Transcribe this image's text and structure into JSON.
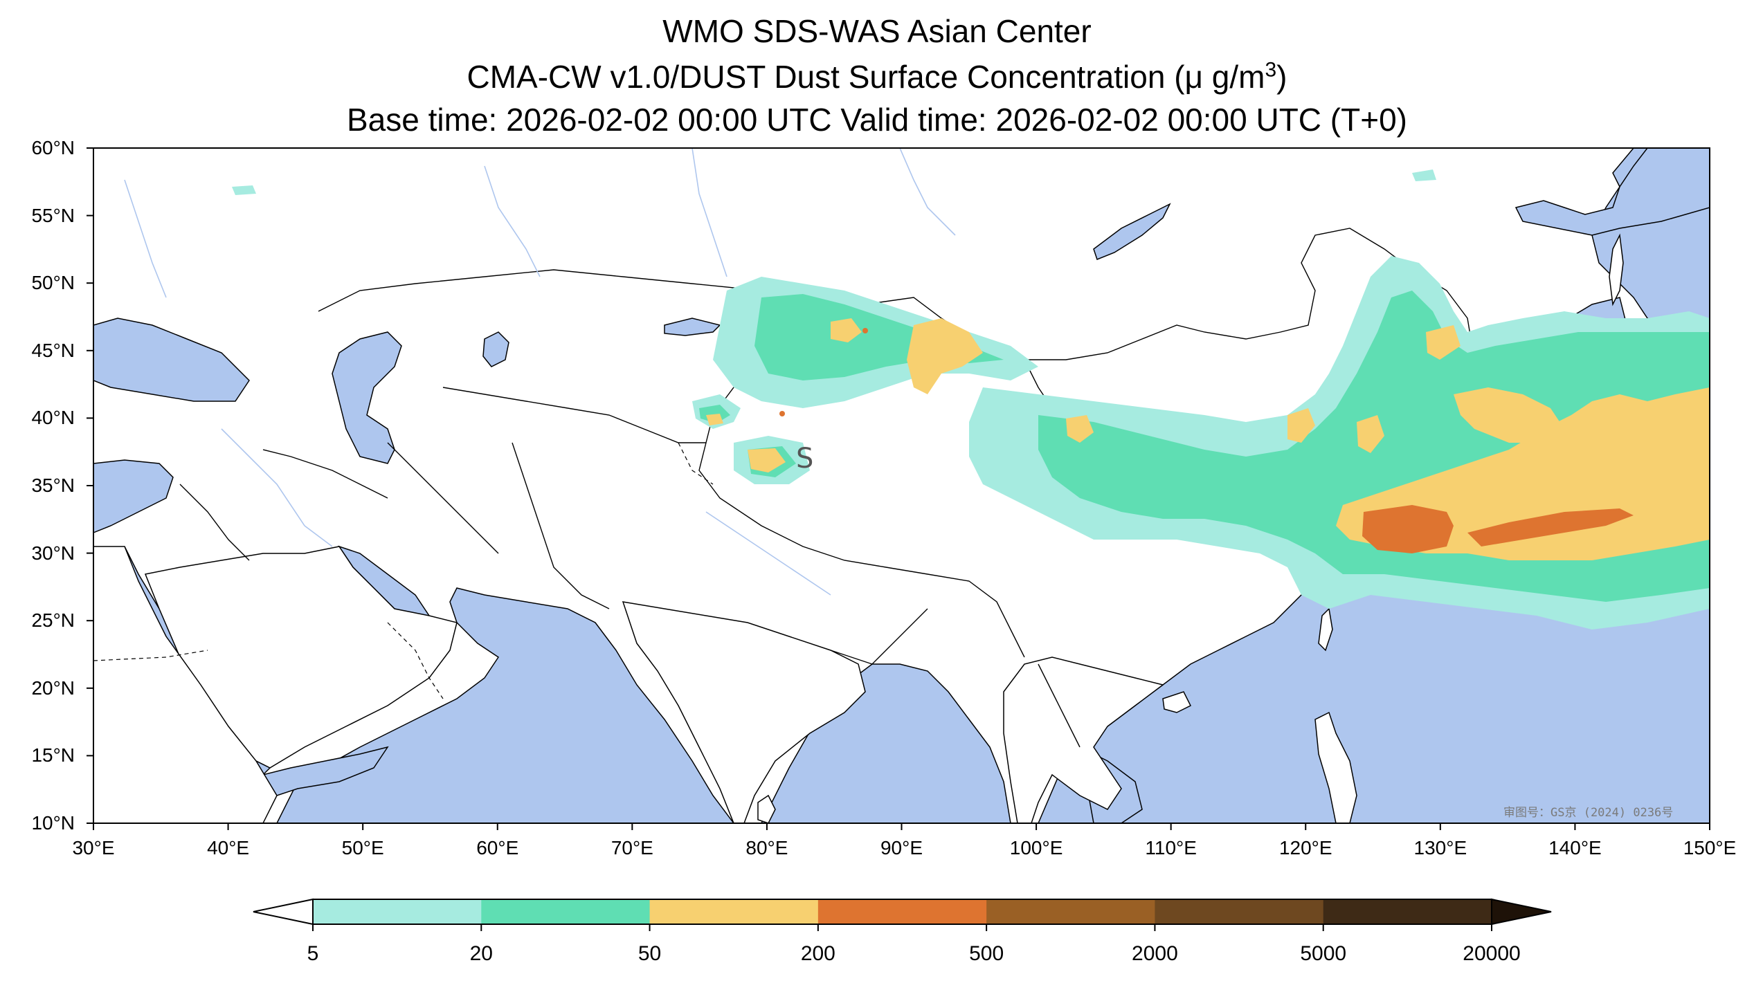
{
  "title": {
    "line1": "WMO SDS-WAS Asian Center",
    "line2_prefix": "CMA-CW v1.0/DUST Dust Surface Concentration (",
    "line2_unit": "μ g/m",
    "line2_sup": "3",
    "line2_suffix": ")",
    "line3": "Base time: 2026-02-02 00:00 UTC Valid time: 2026-02-02 00:00 UTC (T+0)"
  },
  "map": {
    "extent": {
      "lon": [
        30,
        150
      ],
      "lat": [
        10,
        60
      ]
    },
    "lat_ticks": [
      {
        "value": 60,
        "label": "60°N"
      },
      {
        "value": 55,
        "label": "55°N"
      },
      {
        "value": 50,
        "label": "50°N"
      },
      {
        "value": 45,
        "label": "45°N"
      },
      {
        "value": 40,
        "label": "40°N"
      },
      {
        "value": 35,
        "label": "35°N"
      },
      {
        "value": 30,
        "label": "30°N"
      },
      {
        "value": 25,
        "label": "25°N"
      },
      {
        "value": 20,
        "label": "20°N"
      },
      {
        "value": 15,
        "label": "15°N"
      },
      {
        "value": 10,
        "label": "10°N"
      }
    ],
    "lon_ticks": [
      {
        "value": 30,
        "label": "30°E"
      },
      {
        "value": 40,
        "label": "40°E"
      },
      {
        "value": 50,
        "label": "50°E"
      },
      {
        "value": 60,
        "label": "60°E"
      },
      {
        "value": 70,
        "label": "70°E"
      },
      {
        "value": 80,
        "label": "80°E"
      },
      {
        "value": 90,
        "label": "90°E"
      },
      {
        "value": 100,
        "label": "100°E"
      },
      {
        "value": 110,
        "label": "110°E"
      },
      {
        "value": 120,
        "label": "120°E"
      },
      {
        "value": 130,
        "label": "130°E"
      },
      {
        "value": 140,
        "label": "140°E"
      },
      {
        "value": 150,
        "label": "150°E"
      }
    ],
    "ocean_color": "#aec6ee",
    "land_color": "#ffffff",
    "border_color": "#000000",
    "river_color": "#aec6ee",
    "watermark": "审图号：GS京 (2024) 0236号"
  },
  "colorbar": {
    "levels": [
      "5",
      "20",
      "50",
      "200",
      "500",
      "2000",
      "5000",
      "20000"
    ],
    "colors": [
      "#a6ebe0",
      "#5fdeb3",
      "#f7d070",
      "#de7430",
      "#9a6025",
      "#6e4820",
      "#3e2a16"
    ],
    "under_color": "#ffffff",
    "over_color": "#1e1208"
  }
}
